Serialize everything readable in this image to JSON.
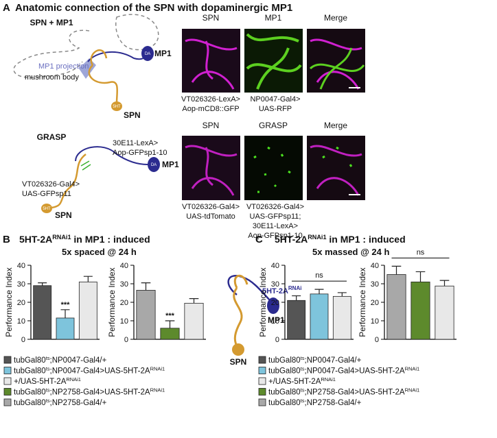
{
  "panel_a": {
    "label": "A",
    "title": "Anatomic connection of the SPN with dopaminergic MP1",
    "row1": {
      "diagram_title": "SPN + MP1",
      "mp1_projection": "MP1 projection",
      "mushroom_body": "mushroom body",
      "mp1": "MP1",
      "da": "DA",
      "spn": "SPN",
      "ht": "5HT",
      "headers": [
        "SPN",
        "MP1",
        "Merge"
      ],
      "captions": [
        [
          "VT026326-LexA>",
          "Aop-mCD8::GFP"
        ],
        [
          "NP0047-Gal4>",
          "UAS-RFP"
        ]
      ]
    },
    "row2": {
      "diagram_title": "GRASP",
      "lexa": [
        "30E11-LexA>",
        "Aop-GFPsp1-10"
      ],
      "mp1": "MP1",
      "da": "DA",
      "gal4": [
        "VT026326-Gal4>",
        "UAS-GFPsp11"
      ],
      "spn": "SPN",
      "ht": "5HT",
      "headers": [
        "SPN",
        "GRASP",
        "Merge"
      ],
      "captions": [
        [
          "VT026326-Gal4>",
          "UAS-tdTomato"
        ],
        [
          "VT026326-Gal4>",
          "UAS-GFPsp11;",
          "30E11-LexA>",
          "Aop-GFPsp1-10"
        ]
      ]
    }
  },
  "panel_b": {
    "label": "B",
    "title": {
      "pre": "5HT-2A",
      "sup": "RNAi1",
      "post": " in MP1 : induced"
    },
    "subtitle": "5x spaced @ 24 h",
    "diagram": {
      "pre": "5HT-2A",
      "sup": "RNAi",
      "mp1": "MP1",
      "spn": "SPN"
    },
    "legend": [
      {
        "color": "#555555",
        "pre": "tubGal80",
        "sup": "ts",
        "post": ";NP0047-Gal4/+"
      },
      {
        "color": "#7ec4dc",
        "pre": "tubGal80",
        "sup": "ts",
        "post": ";NP0047-Gal4>UAS-5HT-2A",
        "sup2": "RNAi1"
      },
      {
        "color": "#e8e8e8",
        "pre": "+/UAS-5HT-2A",
        "sup": "RNAi1"
      },
      {
        "color": "#5d8a2c",
        "pre": "tubGal80",
        "sup": "ts",
        "post": ";NP2758-Gal4>UAS-5HT-2A",
        "sup2": "RNAi1"
      },
      {
        "color": "#a8a8a8",
        "pre": "tubGal80",
        "sup": "ts",
        "post": ";NP2758-Gal4/+"
      }
    ]
  },
  "panel_c": {
    "label": "C",
    "title": {
      "pre": "5HT-2A",
      "sup": "RNAi1",
      "post": " in MP1 : induced"
    },
    "subtitle": "5x massed @ 24 h",
    "legend": [
      {
        "color": "#555555",
        "pre": "tubGal80",
        "sup": "ts",
        "post": ";NP0047-Gal4/+"
      },
      {
        "color": "#7ec4dc",
        "pre": "tubGal80",
        "sup": "ts",
        "post": ";NP0047-Gal4>UAS-5HT-2A",
        "sup2": "RNAi1"
      },
      {
        "color": "#e8e8e8",
        "pre": "+/UAS-5HT-2A",
        "sup": "RNAi1"
      },
      {
        "color": "#5d8a2c",
        "pre": "tubGal80",
        "sup": "ts",
        "post": ";NP2758-Gal4>UAS-5HT-2A",
        "sup2": "RNAi1"
      },
      {
        "color": "#a8a8a8",
        "pre": "tubGal80",
        "sup": "ts",
        "post": ";NP2758-Gal4/+"
      }
    ]
  },
  "chart_data": [
    {
      "type": "bar",
      "ylabel": "Performance Index",
      "categories": [
        null,
        null,
        null
      ],
      "values": [
        29,
        11.5,
        31
      ],
      "errors": [
        1.5,
        4.5,
        3
      ],
      "colors": [
        "#555555",
        "#7ec4dc",
        "#e8e8e8"
      ],
      "significance": [
        null,
        "***",
        null
      ],
      "ylim": [
        0,
        40
      ],
      "yticks": [
        0,
        10,
        20,
        30,
        40
      ]
    },
    {
      "type": "bar",
      "ylabel": "Performance Index",
      "categories": [
        null,
        null,
        null
      ],
      "values": [
        26.5,
        6,
        19.5
      ],
      "errors": [
        4,
        4,
        2.5
      ],
      "colors": [
        "#a8a8a8",
        "#5d8a2c",
        "#e8e8e8"
      ],
      "significance": [
        null,
        "***",
        null
      ],
      "ylim": [
        0,
        40
      ],
      "yticks": [
        0,
        10,
        20,
        30,
        40
      ]
    },
    {
      "type": "bar",
      "ylabel": "Performance Index",
      "categories": [
        null,
        null,
        null
      ],
      "values": [
        21,
        24.5,
        23.2
      ],
      "errors": [
        2.5,
        2.5,
        2
      ],
      "colors": [
        "#555555",
        "#7ec4dc",
        "#e8e8e8"
      ],
      "comparison": "ns",
      "ylim": [
        0,
        40
      ],
      "yticks": [
        0,
        10,
        20,
        30,
        40
      ]
    },
    {
      "type": "bar",
      "ylabel": "Performance Index",
      "categories": [
        null,
        null,
        null
      ],
      "values": [
        35,
        31,
        28.8
      ],
      "errors": [
        4.5,
        5.5,
        3
      ],
      "colors": [
        "#a8a8a8",
        "#5d8a2c",
        "#e8e8e8"
      ],
      "comparison": "ns",
      "ylim": [
        0,
        40
      ],
      "yticks": [
        0,
        10,
        20,
        30,
        40
      ]
    }
  ]
}
